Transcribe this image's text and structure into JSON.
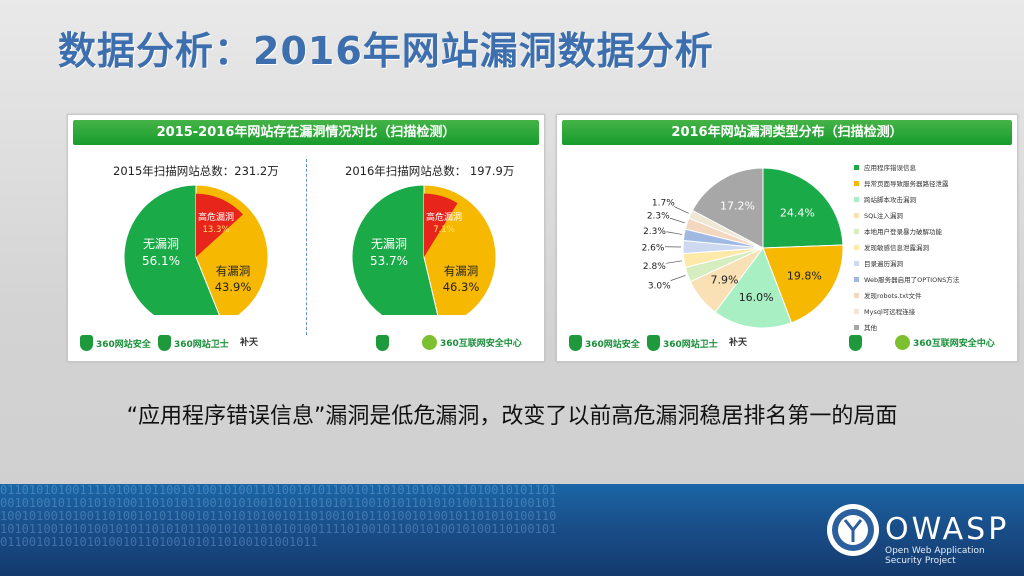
{
  "title": "数据分析：2016年网站漏洞数据分析",
  "left_panel": {
    "header": "2015-2016年网站存在漏洞情况对比（扫描检测）",
    "charts": [
      {
        "subtitle": "2015年扫描网站总数：231.2万",
        "slices": [
          {
            "label": "高危漏洞",
            "pct": "13.3%",
            "value": 13.3,
            "color": "#e8251b"
          },
          {
            "label": "有漏洞",
            "pct": "43.9%",
            "value": 43.9,
            "color": "#f6b800"
          },
          {
            "label": "无漏洞",
            "pct": "56.1%",
            "value": 56.1,
            "color": "#1aaa48"
          }
        ]
      },
      {
        "subtitle": "2016年扫描网站总数： 197.9万",
        "slices": [
          {
            "label": "高危漏洞",
            "pct": "7.1%",
            "value": 7.1,
            "color": "#e8251b"
          },
          {
            "label": "有漏洞",
            "pct": "46.3%",
            "value": 46.3,
            "color": "#f6b800"
          },
          {
            "label": "无漏洞",
            "pct": "53.7%",
            "value": 53.7,
            "color": "#1aaa48"
          }
        ]
      }
    ],
    "footer_logos": [
      "360网站安全",
      "360网站卫士",
      "补天",
      "360网站安全",
      "360互联网安全中心"
    ]
  },
  "right_panel": {
    "header": "2016年网站漏洞类型分布（扫描检测）",
    "legend": [
      {
        "label": "应用程序错误信息",
        "color": "#1aaa48"
      },
      {
        "label": "异常页面导致服务器路径泄露",
        "color": "#f6b800"
      },
      {
        "label": "跨站脚本攻击漏洞",
        "color": "#a8efc3"
      },
      {
        "label": "SQL注入漏洞",
        "color": "#f9e1b5"
      },
      {
        "label": "本地用户登录暴力破解功能",
        "color": "#d6edc0"
      },
      {
        "label": "发现敏感信息泄露漏洞",
        "color": "#ffe9a8"
      },
      {
        "label": "目录遍历漏洞",
        "color": "#cdd9f1"
      },
      {
        "label": "Web服务器启用了OPTIONS方法",
        "color": "#9fb9e3"
      },
      {
        "label": "发现robots.txt文件",
        "color": "#f3d7bf"
      },
      {
        "label": "Mysql可远程连接",
        "color": "#f0e7d4"
      },
      {
        "label": "其他",
        "color": "#a7a7a7"
      }
    ],
    "footer_logos": [
      "360网站安全",
      "360网站卫士",
      "补天",
      "360网站安全",
      "360互联网安全中心"
    ]
  },
  "chart_data": [
    {
      "type": "pie",
      "title": "2015年扫描网站总数：231.2万",
      "slices": [
        {
          "label": "无漏洞",
          "value": 56.1
        },
        {
          "label": "有漏洞",
          "value": 43.9
        },
        {
          "label": "高危漏洞",
          "value": 13.3
        }
      ]
    },
    {
      "type": "pie",
      "title": "2016年扫描网站总数： 197.9万",
      "slices": [
        {
          "label": "无漏洞",
          "value": 53.7
        },
        {
          "label": "有漏洞",
          "value": 46.3
        },
        {
          "label": "高危漏洞",
          "value": 7.1
        }
      ]
    },
    {
      "type": "pie",
      "title": "2016年网站漏洞类型分布（扫描检测）",
      "slices": [
        {
          "label": "应用程序错误信息",
          "value": 24.4,
          "pct": "24.4%"
        },
        {
          "label": "异常页面导致服务器路径泄露",
          "value": 19.8,
          "pct": "19.8%"
        },
        {
          "label": "跨站脚本攻击漏洞",
          "value": 16.0,
          "pct": "16.0%"
        },
        {
          "label": "SQL注入漏洞",
          "value": 7.9,
          "pct": "7.9%"
        },
        {
          "label": "本地用户登录暴力破解功能",
          "value": 3.0,
          "pct": "3.0%"
        },
        {
          "label": "发现敏感信息泄露漏洞",
          "value": 2.8,
          "pct": "2.8%"
        },
        {
          "label": "目录遍历漏洞",
          "value": 2.6,
          "pct": "2.6%"
        },
        {
          "label": "Web服务器启用了OPTIONS方法",
          "value": 2.3,
          "pct": "2.3%"
        },
        {
          "label": "发现robots.txt文件",
          "value": 2.3,
          "pct": "2.3%"
        },
        {
          "label": "Mysql可远程连接",
          "value": 1.7,
          "pct": "1.7%"
        },
        {
          "label": "其他",
          "value": 17.2,
          "pct": "17.2%"
        }
      ]
    }
  ],
  "caption": "“应用程序错误信息”漏洞是低危漏洞，改变了以前高危漏洞稳居排名第一的局面",
  "owasp": {
    "name": "OWASP",
    "subtitle_line1": "Open Web Application",
    "subtitle_line2": "Security Project"
  },
  "binary_bg": "0110101010011110100101100101001010011010010101100101101010100101101001010110100101001011010101001101010110010101001010110101011001010110101010011110100101100101001010011010010101100101101010100101101001010110100101001011010101001101010110010101001010110101011001010110101010011110100101100101001010011010010101100101101010100101101001010110100101001011"
}
